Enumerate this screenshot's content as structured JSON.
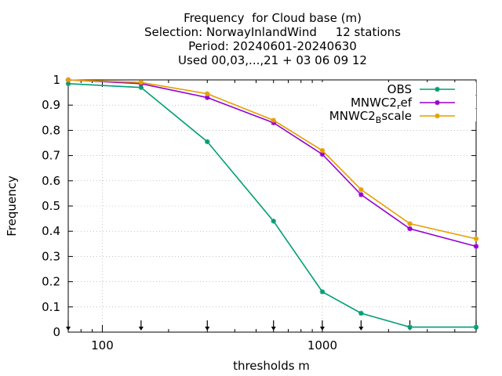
{
  "chart_data": {
    "type": "line",
    "title_lines": [
      "Frequency  for Cloud base (m)",
      "Selection: NorwayInlandWind     12 stations",
      "Period: 20240601-20240630",
      "Used 00,03,...,21 + 03 06 09 12"
    ],
    "xlabel": "thresholds m",
    "ylabel": "Frequency",
    "x_scale": "log",
    "xlim": [
      70,
      5000
    ],
    "ylim": [
      0,
      1
    ],
    "x_ticks": [
      100,
      1000
    ],
    "x_tick_labels": [
      "100",
      "1000"
    ],
    "y_ticks": [
      0,
      0.1,
      0.2,
      0.3,
      0.4,
      0.5,
      0.6,
      0.7,
      0.8,
      0.9,
      1
    ],
    "y_tick_labels": [
      "0",
      "0.1",
      "0.2",
      "0.3",
      "0.4",
      "0.5",
      "0.6",
      "0.7",
      "0.8",
      "0.9",
      "1"
    ],
    "x": [
      70,
      150,
      300,
      600,
      1000,
      1500,
      2500,
      5000
    ],
    "series": [
      {
        "name": "OBS",
        "color": "#009e73",
        "values": [
          0.985,
          0.97,
          0.755,
          0.44,
          0.16,
          0.075,
          0.02,
          0.02
        ]
      },
      {
        "name_main": "MNWC2",
        "name_sub": "r",
        "name_rest": "ef",
        "color": "#9400d3",
        "values": [
          1.0,
          0.985,
          0.93,
          0.83,
          0.705,
          0.545,
          0.41,
          0.34
        ]
      },
      {
        "name_main": "MNWC2",
        "name_sub": "B",
        "name_rest": "scale",
        "color": "#e69f00",
        "values": [
          1.0,
          0.99,
          0.945,
          0.84,
          0.72,
          0.565,
          0.43,
          0.37
        ]
      }
    ],
    "grid": true,
    "legend_position": "top-right"
  }
}
